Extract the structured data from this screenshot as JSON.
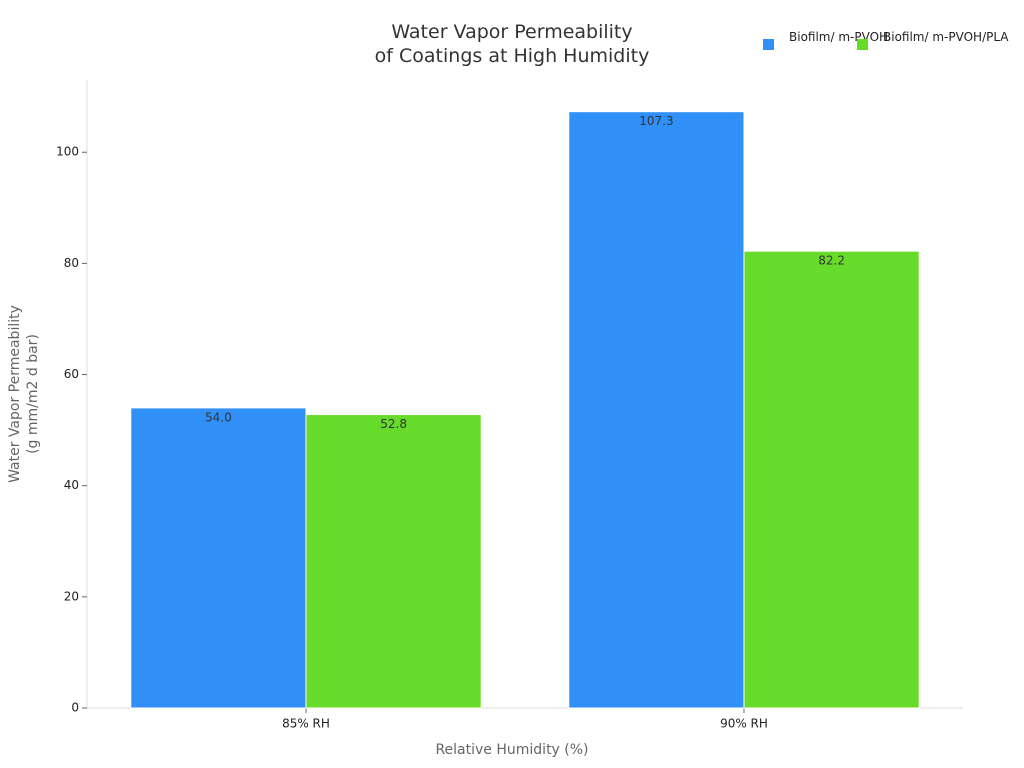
{
  "chart_data": {
    "type": "bar",
    "title": "Water Vapor Permeability\nof Coatings at High Humidity",
    "x_label": "Relative Humidity (%)",
    "y_label": "Water Vapor Permeability\n(g mm/m2 d bar)",
    "categories": [
      "85% RH",
      "90% RH"
    ],
    "series": [
      {
        "name": "Biofilm/\nm-PVOH",
        "color": "#3190f8",
        "values": [
          54.0,
          107.3
        ],
        "value_labels": [
          "54.0",
          "107.3"
        ]
      },
      {
        "name": "Biofilm/\nm-PVOH/PLA",
        "color": "#66db29",
        "values": [
          52.8,
          82.2
        ],
        "value_labels": [
          "52.8",
          "82.2"
        ]
      }
    ],
    "ylim": [
      0,
      113
    ],
    "yticks": [
      0,
      20,
      40,
      60,
      80,
      100
    ],
    "grid": false,
    "legend": "top-right"
  }
}
